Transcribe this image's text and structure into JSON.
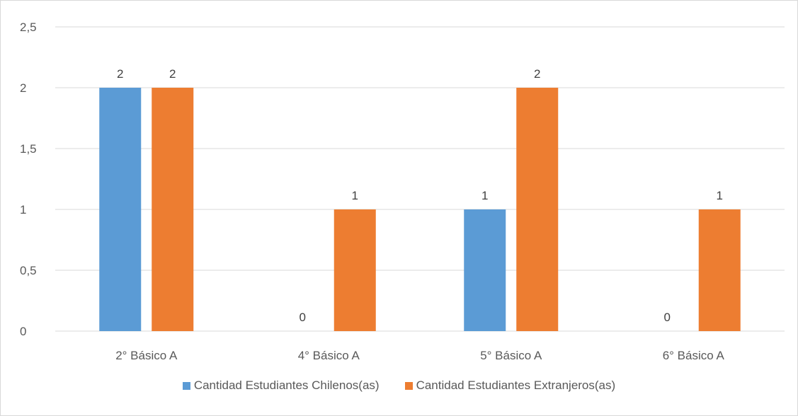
{
  "chart_data": {
    "type": "bar",
    "categories": [
      "2° Básico A",
      "4° Básico A",
      "5° Básico A",
      "6° Básico A"
    ],
    "series": [
      {
        "name": "Cantidad Estudiantes Chilenos(as)",
        "values": [
          2,
          0,
          1,
          0
        ],
        "color": "#5b9bd5"
      },
      {
        "name": "Cantidad Estudiantes Extranjeros(as)",
        "values": [
          2,
          1,
          2,
          1
        ],
        "color": "#ed7d31"
      }
    ],
    "y_ticks": [
      "0",
      "0,5",
      "1",
      "1,5",
      "2",
      "2,5"
    ],
    "ylim": [
      0,
      2.5
    ],
    "grid": true,
    "legend_position": "bottom",
    "data_labels": true
  }
}
